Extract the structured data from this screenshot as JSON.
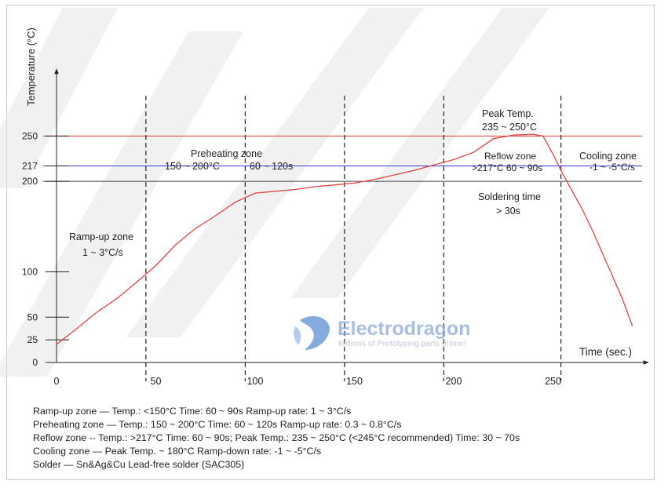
{
  "chart_data": {
    "type": "line",
    "xlabel": "Time (sec.)",
    "ylabel": "Temperature (°C)",
    "xlim": [
      0,
      290
    ],
    "x_ticks": [
      0,
      50,
      100,
      150,
      200,
      250
    ],
    "y_ticks": [
      0,
      25,
      50,
      100,
      200,
      217,
      250
    ],
    "reference_lines": [
      {
        "y": 250,
        "color": "#e03a3a"
      },
      {
        "y": 217,
        "color": "#3a3adc"
      },
      {
        "y": 200,
        "color": "#444444"
      }
    ],
    "zone_dividers_x": [
      45,
      95,
      145,
      195,
      254
    ],
    "series": [
      {
        "color": "#e84040",
        "x": [
          0,
          10,
          20,
          30,
          40,
          50,
          60,
          70,
          80,
          90,
          100,
          110,
          120,
          130,
          140,
          150,
          160,
          170,
          180,
          190,
          200,
          210,
          220,
          230,
          240,
          245,
          250,
          255,
          260,
          265,
          270,
          275,
          280,
          285,
          290
        ],
        "y": [
          20,
          37,
          55,
          70,
          88,
          107,
          130,
          148,
          162,
          177,
          187,
          189,
          191,
          194,
          196,
          198,
          202,
          207,
          212,
          218,
          224,
          232,
          247,
          251,
          252,
          250,
          230,
          208,
          188,
          168,
          145,
          120,
          95,
          70,
          40
        ]
      }
    ],
    "annotations": {
      "rampup_title": "Ramp-up zone",
      "rampup_rate": "1 ~ 3°C/s",
      "preheat_title": "Preheating zone",
      "preheat_temp": "150 ~ 200°C",
      "preheat_time": "60 ~ 120s",
      "peak_title": "Peak Temp.",
      "peak_range": "235 ~ 250°C",
      "reflow_title": "Reflow zone",
      "reflow_detail": ">217°C  60 ~ 90s",
      "cooling_title": "Cooling zone",
      "cooling_rate": "-1 ~ -5°C/s",
      "soldering_title": "Soldering time",
      "soldering_value": "> 30s"
    }
  },
  "watermark": {
    "brand": "Electrodragon",
    "tagline": "Millions of Prototyping parts online!",
    "color": "#5a8fd6"
  },
  "notes": [
    {
      "key": "Ramp-up zone",
      "text": " — Temp.: <150°C  Time: 60 ~ 90s  Ramp-up rate: 1 ~ 3°C/s"
    },
    {
      "key": "Preheating zone",
      "text": " — Temp.: 150 ~ 200°C  Time: 60 ~ 120s  Ramp-up rate: 0.3 ~ 0.8°C/s"
    },
    {
      "key": "Reflow zone",
      "text": " -- Temp.: >217°C  Time: 60 ~ 90s; Peak Temp.: 235 ~ 250°C (<245°C recommended)  Time: 30 ~ 70s"
    },
    {
      "key": "Cooling zone",
      "text": " — Peak Temp. ~ 180°C  Ramp-down rate: -1 ~ -5°C/s"
    },
    {
      "key": "Solder",
      "text": " — Sn&Ag&Cu Lead-free solder (SAC305)"
    }
  ]
}
